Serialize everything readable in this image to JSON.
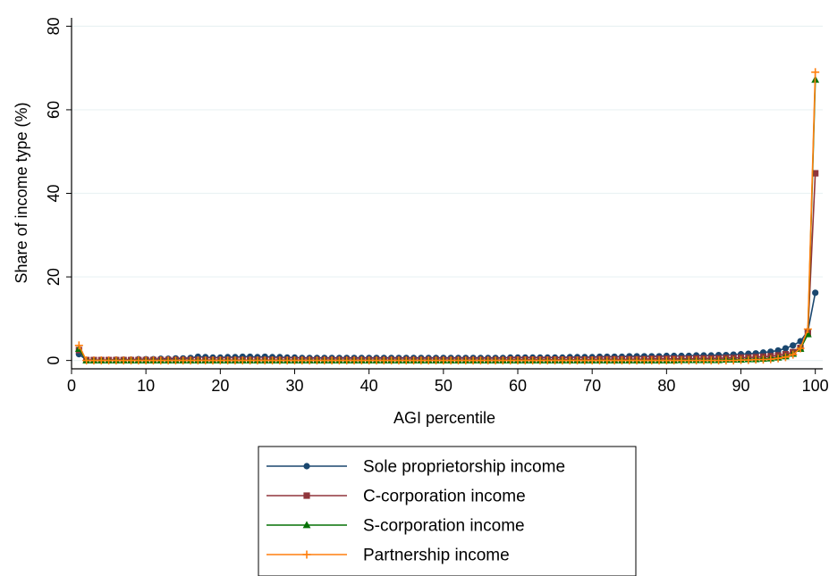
{
  "chart_data": {
    "type": "line",
    "title": "",
    "xlabel": "AGI percentile",
    "ylabel": "Share of income type (%)",
    "xlim": [
      0,
      101
    ],
    "ylim": [
      -2,
      82
    ],
    "xticks": [
      0,
      10,
      20,
      30,
      40,
      50,
      60,
      70,
      80,
      90,
      100
    ],
    "yticks": [
      0,
      20,
      40,
      60,
      80
    ],
    "grid": "horizontal",
    "legend": "bottom-center",
    "series": [
      {
        "name": "Sole proprietorship income",
        "color": "#1a476f",
        "marker": "circle",
        "x": [
          1,
          2,
          3,
          4,
          5,
          6,
          7,
          8,
          9,
          10,
          11,
          12,
          13,
          14,
          15,
          16,
          17,
          18,
          19,
          20,
          21,
          22,
          23,
          24,
          25,
          26,
          27,
          28,
          29,
          30,
          31,
          32,
          33,
          34,
          35,
          36,
          37,
          38,
          39,
          40,
          41,
          42,
          43,
          44,
          45,
          46,
          47,
          48,
          49,
          50,
          51,
          52,
          53,
          54,
          55,
          56,
          57,
          58,
          59,
          60,
          61,
          62,
          63,
          64,
          65,
          66,
          67,
          68,
          69,
          70,
          71,
          72,
          73,
          74,
          75,
          76,
          77,
          78,
          79,
          80,
          81,
          82,
          83,
          84,
          85,
          86,
          87,
          88,
          89,
          90,
          91,
          92,
          93,
          94,
          95,
          96,
          97,
          98,
          99,
          100
        ],
        "values": [
          1.5,
          0.1,
          0.1,
          0.1,
          0.1,
          0.2,
          0.2,
          0.2,
          0.3,
          0.3,
          0.3,
          0.4,
          0.4,
          0.5,
          0.5,
          0.6,
          0.9,
          0.8,
          0.7,
          0.7,
          0.8,
          0.8,
          0.9,
          0.9,
          0.8,
          0.9,
          0.8,
          0.8,
          0.7,
          0.7,
          0.6,
          0.6,
          0.6,
          0.6,
          0.6,
          0.6,
          0.6,
          0.6,
          0.6,
          0.6,
          0.6,
          0.6,
          0.6,
          0.6,
          0.6,
          0.6,
          0.6,
          0.6,
          0.6,
          0.6,
          0.6,
          0.6,
          0.6,
          0.6,
          0.6,
          0.6,
          0.6,
          0.6,
          0.7,
          0.7,
          0.7,
          0.7,
          0.7,
          0.7,
          0.7,
          0.7,
          0.8,
          0.8,
          0.8,
          0.8,
          0.9,
          0.9,
          0.9,
          0.9,
          1.0,
          1.0,
          1.0,
          1.0,
          1.0,
          1.1,
          1.1,
          1.1,
          1.1,
          1.2,
          1.2,
          1.2,
          1.3,
          1.3,
          1.4,
          1.5,
          1.6,
          1.7,
          1.9,
          2.1,
          2.4,
          2.9,
          3.6,
          4.6,
          7.0,
          16.2
        ]
      },
      {
        "name": "C-corporation income",
        "color": "#90353b",
        "marker": "square",
        "x": [
          1,
          2,
          3,
          4,
          5,
          6,
          7,
          8,
          9,
          10,
          11,
          12,
          13,
          14,
          15,
          16,
          17,
          18,
          19,
          20,
          21,
          22,
          23,
          24,
          25,
          26,
          27,
          28,
          29,
          30,
          31,
          32,
          33,
          34,
          35,
          36,
          37,
          38,
          39,
          40,
          41,
          42,
          43,
          44,
          45,
          46,
          47,
          48,
          49,
          50,
          51,
          52,
          53,
          54,
          55,
          56,
          57,
          58,
          59,
          60,
          61,
          62,
          63,
          64,
          65,
          66,
          67,
          68,
          69,
          70,
          71,
          72,
          73,
          74,
          75,
          76,
          77,
          78,
          79,
          80,
          81,
          82,
          83,
          84,
          85,
          86,
          87,
          88,
          89,
          90,
          91,
          92,
          93,
          94,
          95,
          96,
          97,
          98,
          99,
          100
        ],
        "values": [
          2.5,
          0.1,
          0.1,
          0.1,
          0.1,
          0.1,
          0.1,
          0.1,
          0.1,
          0.1,
          0.1,
          0.1,
          0.1,
          0.1,
          0.1,
          0.1,
          0.1,
          0.1,
          0.1,
          0.1,
          0.1,
          0.1,
          0.1,
          0.1,
          0.1,
          0.1,
          0.1,
          0.1,
          0.1,
          0.1,
          0.1,
          0.1,
          0.1,
          0.1,
          0.1,
          0.1,
          0.1,
          0.1,
          0.1,
          0.1,
          0.1,
          0.1,
          0.1,
          0.1,
          0.1,
          0.1,
          0.1,
          0.1,
          0.1,
          0.1,
          0.1,
          0.1,
          0.1,
          0.1,
          0.1,
          0.1,
          0.1,
          0.1,
          0.2,
          0.2,
          0.2,
          0.2,
          0.2,
          0.2,
          0.2,
          0.2,
          0.2,
          0.2,
          0.2,
          0.2,
          0.3,
          0.3,
          0.3,
          0.3,
          0.3,
          0.3,
          0.3,
          0.4,
          0.4,
          0.4,
          0.4,
          0.4,
          0.4,
          0.5,
          0.5,
          0.5,
          0.5,
          0.6,
          0.6,
          0.7,
          0.7,
          0.8,
          0.9,
          1.0,
          1.2,
          1.5,
          2.0,
          3.0,
          6.5,
          44.8
        ]
      },
      {
        "name": "S-corporation income",
        "color": "#057105",
        "marker": "triangle",
        "x": [
          1,
          2,
          3,
          4,
          5,
          6,
          7,
          8,
          9,
          10,
          11,
          12,
          13,
          14,
          15,
          16,
          17,
          18,
          19,
          20,
          21,
          22,
          23,
          24,
          25,
          26,
          27,
          28,
          29,
          30,
          31,
          32,
          33,
          34,
          35,
          36,
          37,
          38,
          39,
          40,
          41,
          42,
          43,
          44,
          45,
          46,
          47,
          48,
          49,
          50,
          51,
          52,
          53,
          54,
          55,
          56,
          57,
          58,
          59,
          60,
          61,
          62,
          63,
          64,
          65,
          66,
          67,
          68,
          69,
          70,
          71,
          72,
          73,
          74,
          75,
          76,
          77,
          78,
          79,
          80,
          81,
          82,
          83,
          84,
          85,
          86,
          87,
          88,
          89,
          90,
          91,
          92,
          93,
          94,
          95,
          96,
          97,
          98,
          99,
          100
        ],
        "values": [
          2.8,
          0.0,
          0.0,
          0.0,
          0.0,
          0.0,
          0.0,
          0.0,
          0.0,
          0.0,
          0.0,
          0.0,
          0.0,
          0.0,
          0.0,
          0.0,
          0.0,
          0.0,
          0.0,
          0.0,
          0.0,
          0.0,
          0.0,
          0.0,
          0.0,
          0.0,
          0.0,
          0.0,
          0.0,
          0.0,
          0.0,
          0.0,
          0.0,
          0.0,
          0.0,
          0.0,
          0.0,
          0.0,
          0.0,
          0.0,
          0.0,
          0.0,
          0.0,
          0.0,
          0.0,
          0.0,
          0.0,
          0.0,
          0.0,
          0.0,
          0.0,
          0.0,
          0.0,
          0.0,
          0.0,
          0.0,
          0.0,
          0.0,
          0.0,
          0.0,
          0.0,
          0.0,
          0.0,
          0.0,
          0.0,
          0.0,
          0.0,
          0.0,
          0.0,
          0.0,
          0.0,
          0.0,
          0.0,
          0.0,
          0.0,
          0.0,
          0.0,
          0.0,
          0.0,
          0.0,
          0.0,
          0.1,
          0.1,
          0.1,
          0.1,
          0.1,
          0.1,
          0.2,
          0.2,
          0.2,
          0.3,
          0.3,
          0.4,
          0.5,
          0.7,
          1.0,
          1.6,
          2.8,
          6.3,
          67.2
        ]
      },
      {
        "name": "Partnership income",
        "color": "#ff7f0e",
        "marker": "plus",
        "x": [
          1,
          2,
          3,
          4,
          5,
          6,
          7,
          8,
          9,
          10,
          11,
          12,
          13,
          14,
          15,
          16,
          17,
          18,
          19,
          20,
          21,
          22,
          23,
          24,
          25,
          26,
          27,
          28,
          29,
          30,
          31,
          32,
          33,
          34,
          35,
          36,
          37,
          38,
          39,
          40,
          41,
          42,
          43,
          44,
          45,
          46,
          47,
          48,
          49,
          50,
          51,
          52,
          53,
          54,
          55,
          56,
          57,
          58,
          59,
          60,
          61,
          62,
          63,
          64,
          65,
          66,
          67,
          68,
          69,
          70,
          71,
          72,
          73,
          74,
          75,
          76,
          77,
          78,
          79,
          80,
          81,
          82,
          83,
          84,
          85,
          86,
          87,
          88,
          89,
          90,
          91,
          92,
          93,
          94,
          95,
          96,
          97,
          98,
          99,
          100
        ],
        "values": [
          3.6,
          0.0,
          0.0,
          0.0,
          0.0,
          0.0,
          0.0,
          0.0,
          0.0,
          0.0,
          0.0,
          0.0,
          0.0,
          0.0,
          0.0,
          0.0,
          0.0,
          0.0,
          0.0,
          0.0,
          0.0,
          0.0,
          0.0,
          0.0,
          0.0,
          0.0,
          0.0,
          0.0,
          0.0,
          0.0,
          0.0,
          0.0,
          0.0,
          0.0,
          0.0,
          0.0,
          0.0,
          0.0,
          0.0,
          0.0,
          0.0,
          0.0,
          0.0,
          0.0,
          0.0,
          0.0,
          0.0,
          0.0,
          0.0,
          0.0,
          0.0,
          0.0,
          0.0,
          0.0,
          0.0,
          0.0,
          0.0,
          0.0,
          0.0,
          0.0,
          0.0,
          0.0,
          0.0,
          0.0,
          0.0,
          0.0,
          0.0,
          0.0,
          0.0,
          0.0,
          0.0,
          0.0,
          0.0,
          0.0,
          0.0,
          0.0,
          0.0,
          0.0,
          0.0,
          0.0,
          0.0,
          0.0,
          0.0,
          0.0,
          0.0,
          0.0,
          0.0,
          0.0,
          0.0,
          0.1,
          0.1,
          0.2,
          0.2,
          0.3,
          0.5,
          0.8,
          1.4,
          2.9,
          7.5,
          69.0
        ]
      }
    ]
  }
}
